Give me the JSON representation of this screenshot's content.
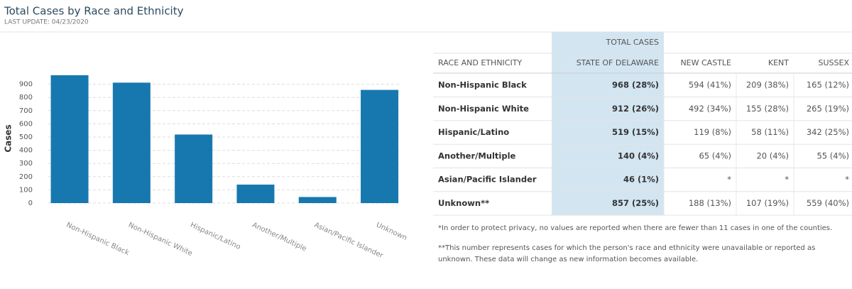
{
  "header": {
    "title": "Total Cases by Race and Ethnicity",
    "subtitle": "LAST UPDATE: 04/23/2020"
  },
  "chart_data": {
    "type": "bar",
    "ylabel": "Cases",
    "categories": [
      "Non-Hispanic Black",
      "Non-Hispanic White",
      "Hispanic/Latino",
      "Another/Multiple",
      "Asian/Pacific Islander",
      "Unknown"
    ],
    "values": [
      968,
      912,
      519,
      140,
      46,
      857
    ],
    "color": "#1778b0",
    "ylim": [
      0,
      1000
    ],
    "yticks": [
      0,
      100,
      200,
      300,
      400,
      500,
      600,
      700,
      800,
      900
    ],
    "grid": true
  },
  "table": {
    "group_header": "TOTAL CASES",
    "columns": [
      "RACE AND ETHNICITY",
      "STATE OF DELAWARE",
      "NEW CASTLE",
      "KENT",
      "SUSSEX"
    ],
    "rows": [
      [
        "Non-Hispanic Black",
        "968 (28%)",
        "594 (41%)",
        "209 (38%)",
        "165 (12%)"
      ],
      [
        "Non-Hispanic White",
        "912 (26%)",
        "492 (34%)",
        "155 (28%)",
        "265 (19%)"
      ],
      [
        "Hispanic/Latino",
        "519 (15%)",
        "119 (8%)",
        "58 (11%)",
        "342 (25%)"
      ],
      [
        "Another/Multiple",
        "140 (4%)",
        "65 (4%)",
        "20 (4%)",
        "55 (4%)"
      ],
      [
        "Asian/Pacific Islander",
        "46 (1%)",
        "*",
        "*",
        "*"
      ],
      [
        "Unknown**",
        "857 (25%)",
        "188 (13%)",
        "107 (19%)",
        "559 (40%)"
      ]
    ]
  },
  "footnotes": [
    "*In order to protect privacy, no values are reported when there are fewer than 11 cases in one of the counties.",
    "**This number represents cases for which the person's race and ethnicity were unavailable or reported as unknown. These data will change as new information becomes available."
  ]
}
